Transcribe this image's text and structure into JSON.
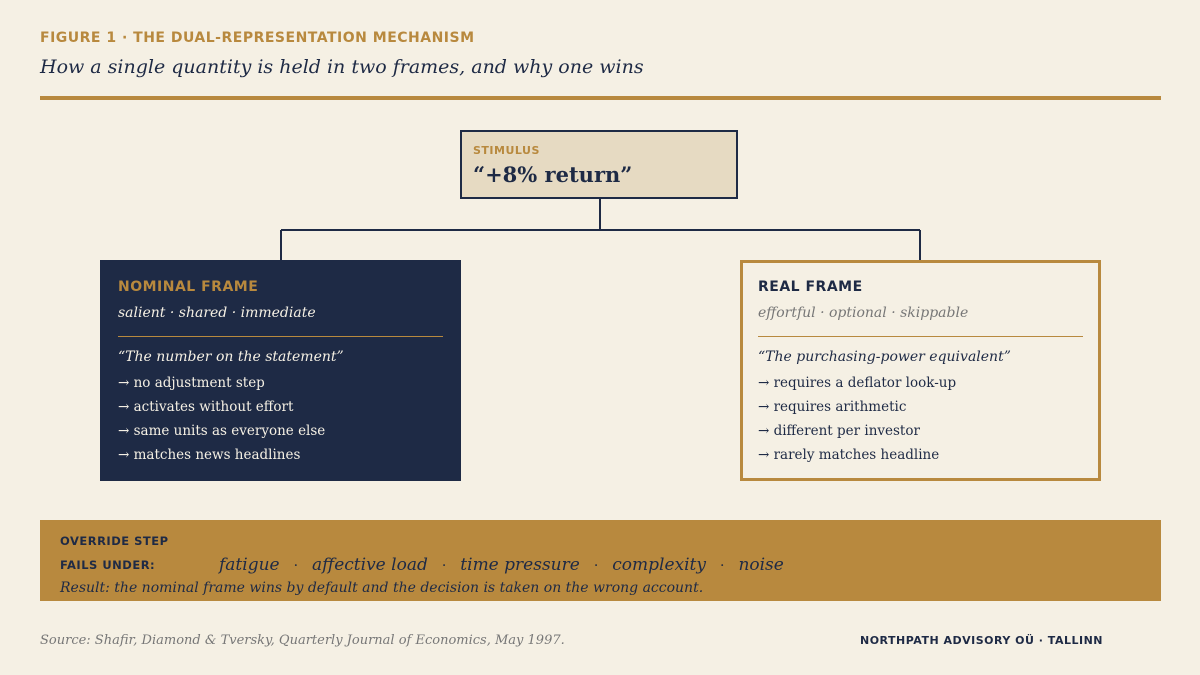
{
  "header": {
    "figure_label": "FIGURE 1 · THE DUAL-REPRESENTATION MECHANISM",
    "title": "How a single quantity is held in two frames, and why one wins"
  },
  "stimulus": {
    "label": "STIMULUS",
    "value": "“+8% return”"
  },
  "nominal_frame": {
    "title": "NOMINAL FRAME",
    "subtitle": "salient · shared · immediate",
    "quote": "“The number on the statement”",
    "items": [
      "→ no adjustment step",
      "→ activates without effort",
      "→ same units as everyone else",
      "→ matches news headlines"
    ]
  },
  "real_frame": {
    "title": "REAL FRAME",
    "subtitle": "effortful · optional · skippable",
    "quote": "“The purchasing-power equivalent”",
    "items": [
      "→ requires a deflator look-up",
      "→ requires arithmetic",
      "→ different per investor",
      "→ rarely matches headline"
    ]
  },
  "override": {
    "label": "OVERRIDE STEP",
    "fails_label": "FAILS UNDER:",
    "conditions": [
      "fatigue",
      "affective load",
      "time pressure",
      "complexity",
      "noise"
    ],
    "separator": "·",
    "result": "Result: the nominal frame wins by default and the decision is taken on the wrong account."
  },
  "footer": {
    "source": "Source: Shafir, Diamond & Tversky, Quarterly Journal of Economics, May 1997.",
    "brand": "NORTHPATH ADVISORY OÜ · TALLINN"
  },
  "colors": {
    "navy": "#1e2a45",
    "gold": "#b8893e",
    "cream": "#f5f0e4",
    "stimulus_fill": "#e6dac2"
  }
}
